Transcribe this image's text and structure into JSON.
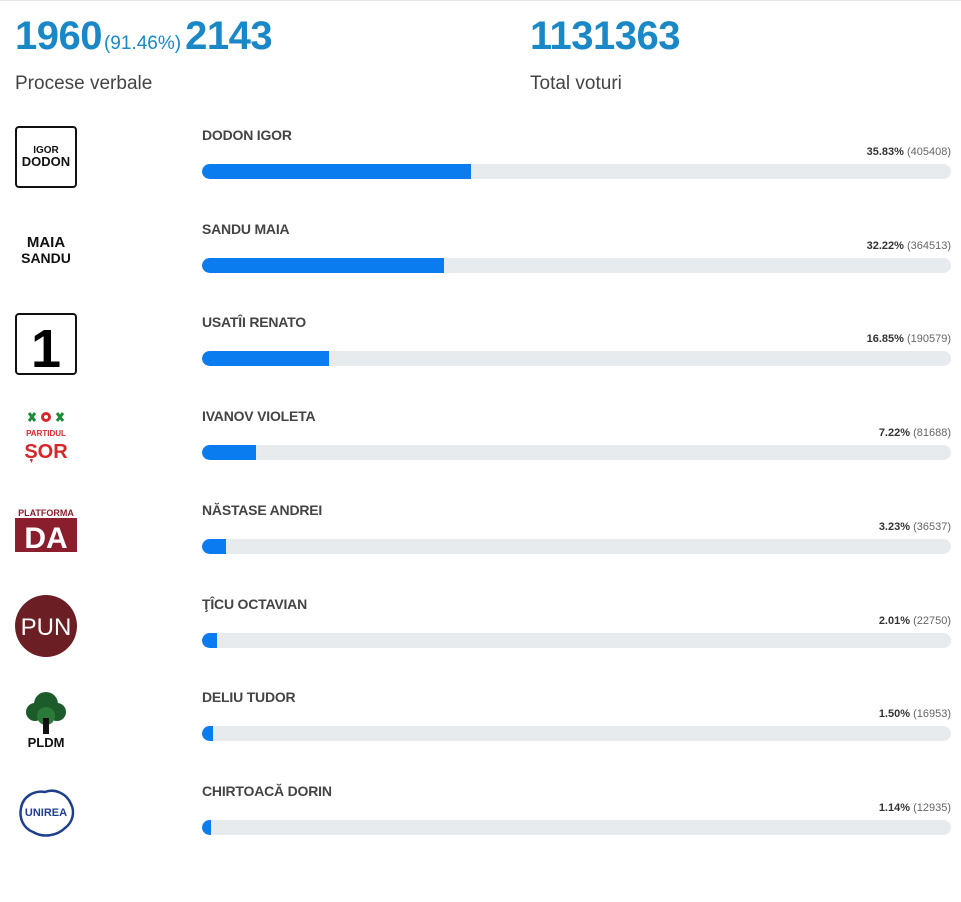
{
  "summary": {
    "processed": "1960",
    "processed_pct": "(91.46%)",
    "total_precincts": "2143",
    "processed_caption": "Procese verbale",
    "total_votes": "1131363",
    "total_votes_caption": "Total voturi"
  },
  "candidates": [
    {
      "name": "DODON IGOR",
      "pct": "35.83%",
      "votes": "(405408)",
      "share": 35.83,
      "logo": "igor-dodon-logo",
      "logo_text": [
        "IGOR",
        "DODON"
      ]
    },
    {
      "name": "SANDU MAIA",
      "pct": "32.22%",
      "votes": "(364513)",
      "share": 32.22,
      "logo": "maia-sandu-logo",
      "logo_text": [
        "MAIA",
        "SANDU"
      ]
    },
    {
      "name": "USATÎI RENATO",
      "pct": "16.85%",
      "votes": "(190579)",
      "share": 16.85,
      "logo": "number-one-logo",
      "logo_text": [
        "1"
      ]
    },
    {
      "name": "IVANOV VIOLETA",
      "pct": "7.22%",
      "votes": "(81688)",
      "share": 7.22,
      "logo": "partidul-sor-logo",
      "logo_text": [
        "PARTIDUL",
        "ȘOR"
      ]
    },
    {
      "name": "NĂSTASE ANDREI",
      "pct": "3.23%",
      "votes": "(36537)",
      "share": 3.23,
      "logo": "platforma-da-logo",
      "logo_text": [
        "PLATFORMA",
        "DA"
      ]
    },
    {
      "name": "ŢÎCU OCTAVIAN",
      "pct": "2.01%",
      "votes": "(22750)",
      "share": 2.01,
      "logo": "pun-logo",
      "logo_text": [
        "PUN"
      ]
    },
    {
      "name": "DELIU TUDOR",
      "pct": "1.50%",
      "votes": "(16953)",
      "share": 1.5,
      "logo": "pldm-logo",
      "logo_text": [
        "PLDM"
      ]
    },
    {
      "name": "CHIRTOACĂ DORIN",
      "pct": "1.14%",
      "votes": "(12935)",
      "share": 1.14,
      "logo": "unirea-logo",
      "logo_text": [
        "UNIREA"
      ]
    }
  ],
  "colors": {
    "accent": "#1a87c7",
    "bar": "#0a7cf0",
    "track": "#e8ebee"
  }
}
